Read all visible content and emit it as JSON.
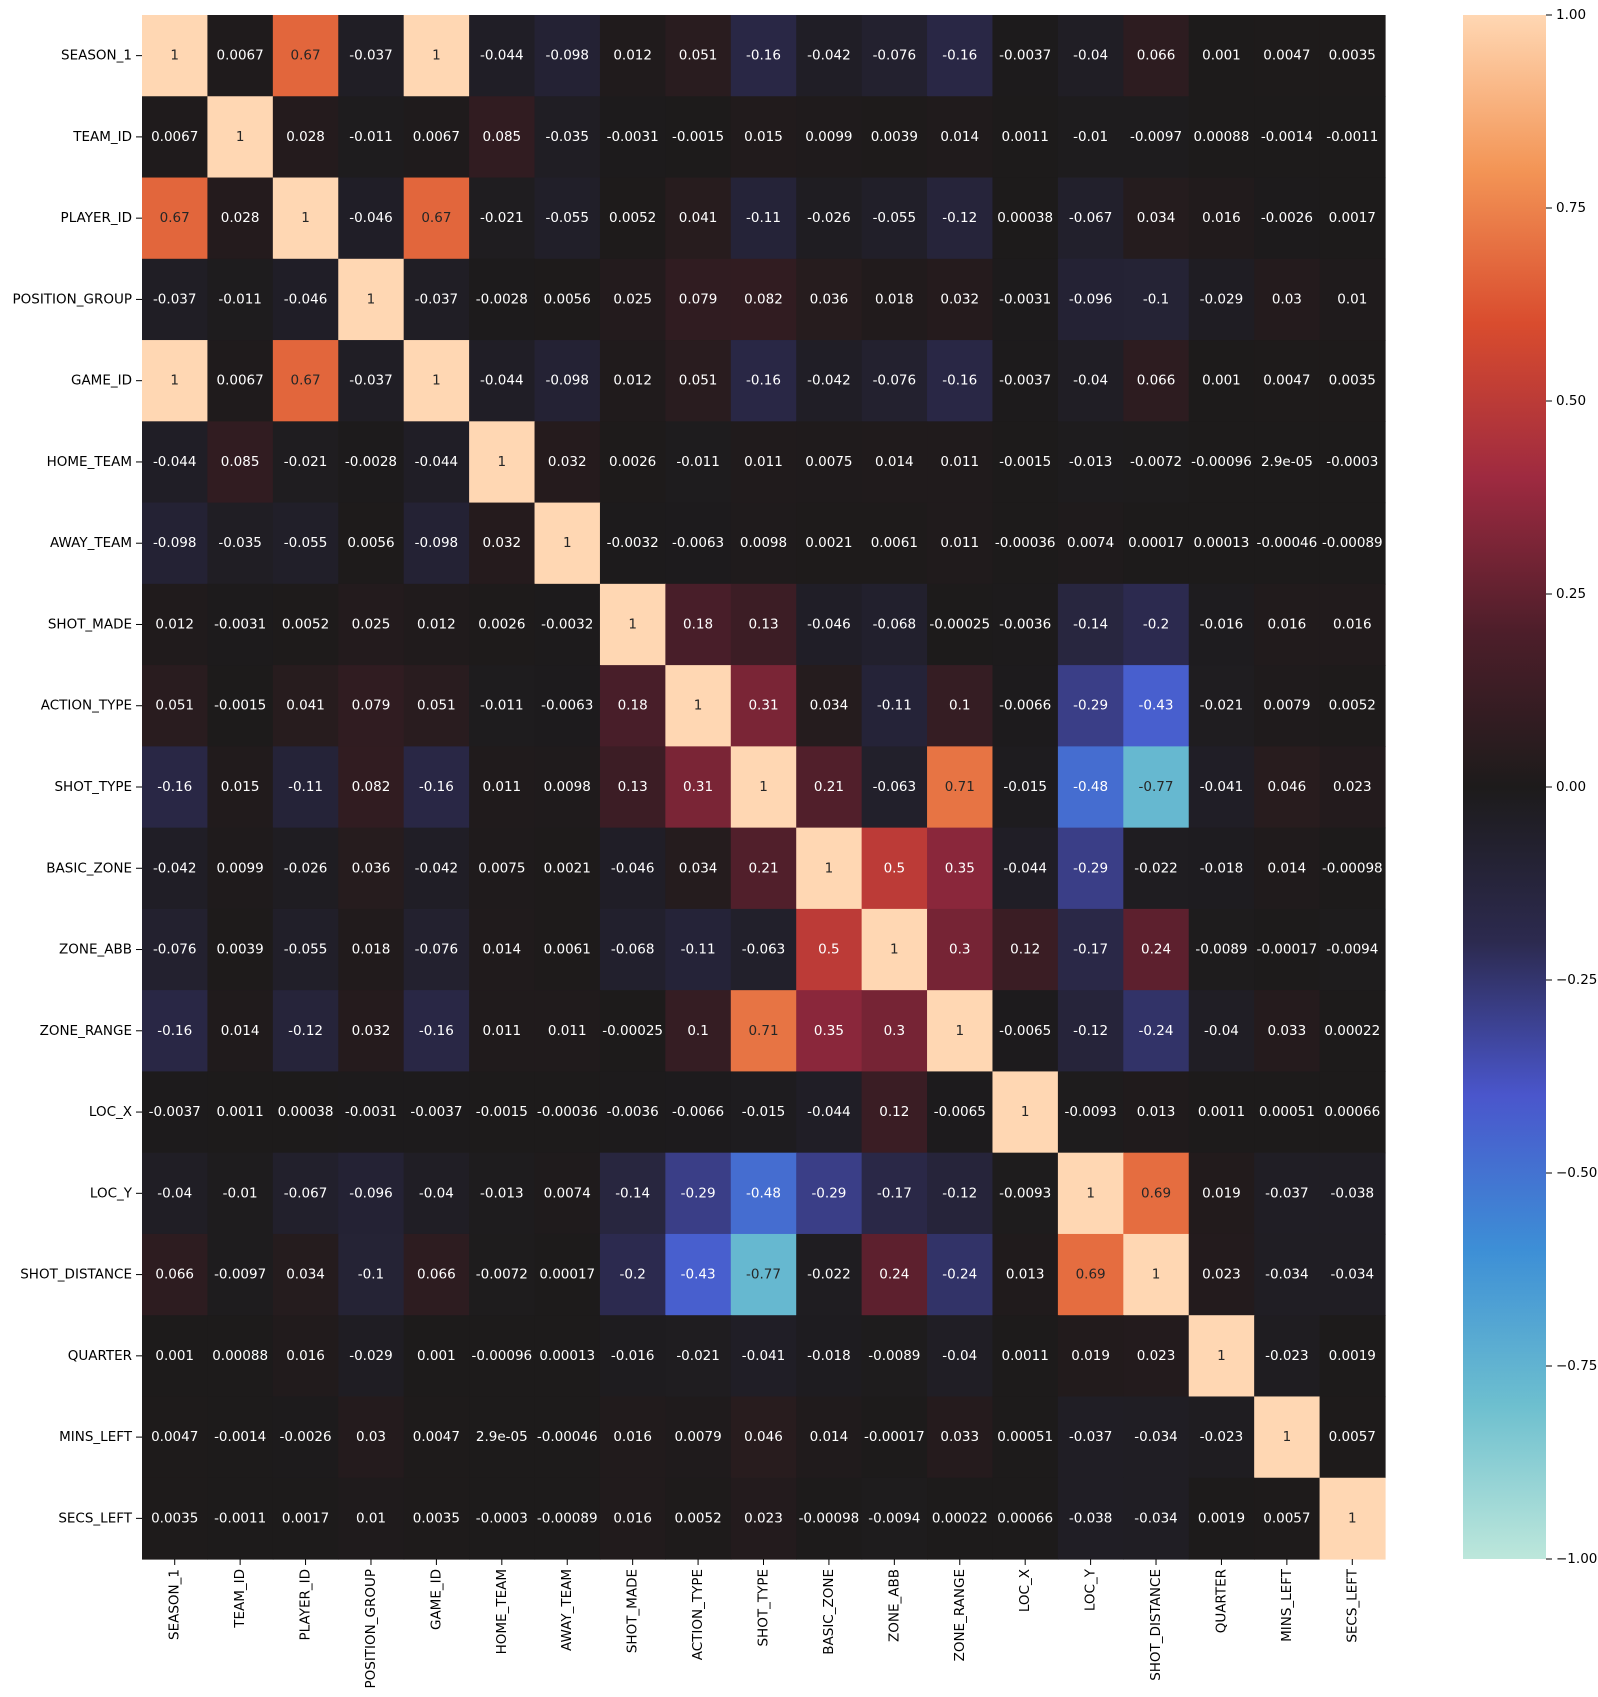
{
  "chart_data": {
    "type": "heatmap",
    "title": "",
    "xlabel": "",
    "ylabel": "",
    "categories": [
      "SEASON_1",
      "TEAM_ID",
      "PLAYER_ID",
      "POSITION_GROUP",
      "GAME_ID",
      "HOME_TEAM",
      "AWAY_TEAM",
      "SHOT_MADE",
      "ACTION_TYPE",
      "SHOT_TYPE",
      "BASIC_ZONE",
      "ZONE_ABB",
      "ZONE_RANGE",
      "LOC_X",
      "LOC_Y",
      "SHOT_DISTANCE",
      "QUARTER",
      "MINS_LEFT",
      "SECS_LEFT"
    ],
    "cell_labels": [
      [
        "1",
        "0.0067",
        "0.67",
        "-0.037",
        "1",
        "-0.044",
        "-0.098",
        "0.012",
        "0.051",
        "-0.16",
        "-0.042",
        "-0.076",
        "-0.16",
        "-0.0037",
        "-0.04",
        "0.066",
        "0.001",
        "0.0047",
        "0.0035"
      ],
      [
        "0.0067",
        "1",
        "0.028",
        "-0.011",
        "0.0067",
        "0.085",
        "-0.035",
        "-0.0031",
        "-0.0015",
        "0.015",
        "0.0099",
        "0.0039",
        "0.014",
        "0.0011",
        "-0.01",
        "-0.0097",
        "0.00088",
        "-0.0014",
        "-0.0011"
      ],
      [
        "0.67",
        "0.028",
        "1",
        "-0.046",
        "0.67",
        "-0.021",
        "-0.055",
        "0.0052",
        "0.041",
        "-0.11",
        "-0.026",
        "-0.055",
        "-0.12",
        "0.00038",
        "-0.067",
        "0.034",
        "0.016",
        "-0.0026",
        "0.0017"
      ],
      [
        "-0.037",
        "-0.011",
        "-0.046",
        "1",
        "-0.037",
        "-0.0028",
        "0.0056",
        "0.025",
        "0.079",
        "0.082",
        "0.036",
        "0.018",
        "0.032",
        "-0.0031",
        "-0.096",
        "-0.1",
        "-0.029",
        "0.03",
        "0.01"
      ],
      [
        "1",
        "0.0067",
        "0.67",
        "-0.037",
        "1",
        "-0.044",
        "-0.098",
        "0.012",
        "0.051",
        "-0.16",
        "-0.042",
        "-0.076",
        "-0.16",
        "-0.0037",
        "-0.04",
        "0.066",
        "0.001",
        "0.0047",
        "0.0035"
      ],
      [
        "-0.044",
        "0.085",
        "-0.021",
        "-0.0028",
        "-0.044",
        "1",
        "0.032",
        "0.0026",
        "-0.011",
        "0.011",
        "0.0075",
        "0.014",
        "0.011",
        "-0.0015",
        "-0.013",
        "-0.0072",
        "-0.00096",
        "2.9e-05",
        "-0.0003"
      ],
      [
        "-0.098",
        "-0.035",
        "-0.055",
        "0.0056",
        "-0.098",
        "0.032",
        "1",
        "-0.0032",
        "-0.0063",
        "0.0098",
        "0.0021",
        "0.0061",
        "0.011",
        "-0.00036",
        "0.0074",
        "0.00017",
        "0.00013",
        "-0.00046",
        "-0.00089"
      ],
      [
        "0.012",
        "-0.0031",
        "0.0052",
        "0.025",
        "0.012",
        "0.0026",
        "-0.0032",
        "1",
        "0.18",
        "0.13",
        "-0.046",
        "-0.068",
        "-0.00025",
        "-0.0036",
        "-0.14",
        "-0.2",
        "-0.016",
        "0.016",
        "0.016"
      ],
      [
        "0.051",
        "-0.0015",
        "0.041",
        "0.079",
        "0.051",
        "-0.011",
        "-0.0063",
        "0.18",
        "1",
        "0.31",
        "0.034",
        "-0.11",
        "0.1",
        "-0.0066",
        "-0.29",
        "-0.43",
        "-0.021",
        "0.0079",
        "0.0052"
      ],
      [
        "-0.16",
        "0.015",
        "-0.11",
        "0.082",
        "-0.16",
        "0.011",
        "0.0098",
        "0.13",
        "0.31",
        "1",
        "0.21",
        "-0.063",
        "0.71",
        "-0.015",
        "-0.48",
        "-0.77",
        "-0.041",
        "0.046",
        "0.023"
      ],
      [
        "-0.042",
        "0.0099",
        "-0.026",
        "0.036",
        "-0.042",
        "0.0075",
        "0.0021",
        "-0.046",
        "0.034",
        "0.21",
        "1",
        "0.5",
        "0.35",
        "-0.044",
        "-0.29",
        "-0.022",
        "-0.018",
        "0.014",
        "-0.00098"
      ],
      [
        "-0.076",
        "0.0039",
        "-0.055",
        "0.018",
        "-0.076",
        "0.014",
        "0.0061",
        "-0.068",
        "-0.11",
        "-0.063",
        "0.5",
        "1",
        "0.3",
        "0.12",
        "-0.17",
        "0.24",
        "-0.0089",
        "-0.00017",
        "-0.0094"
      ],
      [
        "-0.16",
        "0.014",
        "-0.12",
        "0.032",
        "-0.16",
        "0.011",
        "0.011",
        "-0.00025",
        "0.1",
        "0.71",
        "0.35",
        "0.3",
        "1",
        "-0.0065",
        "-0.12",
        "-0.24",
        "-0.04",
        "0.033",
        "0.00022"
      ],
      [
        "-0.0037",
        "0.0011",
        "0.00038",
        "-0.0031",
        "-0.0037",
        "-0.0015",
        "-0.00036",
        "-0.0036",
        "-0.0066",
        "-0.015",
        "-0.044",
        "0.12",
        "-0.0065",
        "1",
        "-0.0093",
        "0.013",
        "0.0011",
        "0.00051",
        "0.00066"
      ],
      [
        "-0.04",
        "-0.01",
        "-0.067",
        "-0.096",
        "-0.04",
        "-0.013",
        "0.0074",
        "-0.14",
        "-0.29",
        "-0.48",
        "-0.29",
        "-0.17",
        "-0.12",
        "-0.0093",
        "1",
        "0.69",
        "0.019",
        "-0.037",
        "-0.038"
      ],
      [
        "0.066",
        "-0.0097",
        "0.034",
        "-0.1",
        "0.066",
        "-0.0072",
        "0.00017",
        "-0.2",
        "-0.43",
        "-0.77",
        "-0.022",
        "0.24",
        "-0.24",
        "0.013",
        "0.69",
        "1",
        "0.023",
        "-0.034",
        "-0.034"
      ],
      [
        "0.001",
        "0.00088",
        "0.016",
        "-0.029",
        "0.001",
        "-0.00096",
        "0.00013",
        "-0.016",
        "-0.021",
        "-0.041",
        "-0.018",
        "-0.0089",
        "-0.04",
        "0.0011",
        "0.019",
        "0.023",
        "1",
        "-0.023",
        "0.0019"
      ],
      [
        "0.0047",
        "-0.0014",
        "-0.0026",
        "0.03",
        "0.0047",
        "2.9e-05",
        "-0.00046",
        "0.016",
        "0.0079",
        "0.046",
        "0.014",
        "-0.00017",
        "0.033",
        "0.00051",
        "-0.037",
        "-0.034",
        "-0.023",
        "1",
        "0.0057"
      ],
      [
        "0.0035",
        "-0.0011",
        "0.0017",
        "0.01",
        "0.0035",
        "-0.0003",
        "-0.00089",
        "0.016",
        "0.0052",
        "0.023",
        "-0.00098",
        "-0.0094",
        "0.00022",
        "0.00066",
        "-0.038",
        "-0.034",
        "0.0019",
        "0.0057",
        "1"
      ]
    ],
    "value_range": [
      -1,
      1
    ],
    "colormap": "icefire",
    "colorbar_ticks": [
      "1.00",
      "0.75",
      "0.50",
      "0.25",
      "0.00",
      "−0.25",
      "−0.50",
      "−0.75",
      "−1.00"
    ],
    "colorbar_tick_values": [
      1,
      0.75,
      0.5,
      0.25,
      0,
      -0.25,
      -0.5,
      -0.75,
      -1
    ],
    "colormap_stops": [
      {
        "v": -1.0,
        "color": "#bde7db"
      },
      {
        "v": -0.8,
        "color": "#6dbfcf"
      },
      {
        "v": -0.6,
        "color": "#3d8fd6"
      },
      {
        "v": -0.4,
        "color": "#4a56cc"
      },
      {
        "v": -0.2,
        "color": "#2c2a4f"
      },
      {
        "v": 0.0,
        "color": "#1d1b1b"
      },
      {
        "v": 0.2,
        "color": "#4d1e2a"
      },
      {
        "v": 0.4,
        "color": "#9e2a40"
      },
      {
        "v": 0.6,
        "color": "#d94c2e"
      },
      {
        "v": 0.8,
        "color": "#f39556"
      },
      {
        "v": 1.0,
        "color": "#ffd7b3"
      }
    ]
  }
}
